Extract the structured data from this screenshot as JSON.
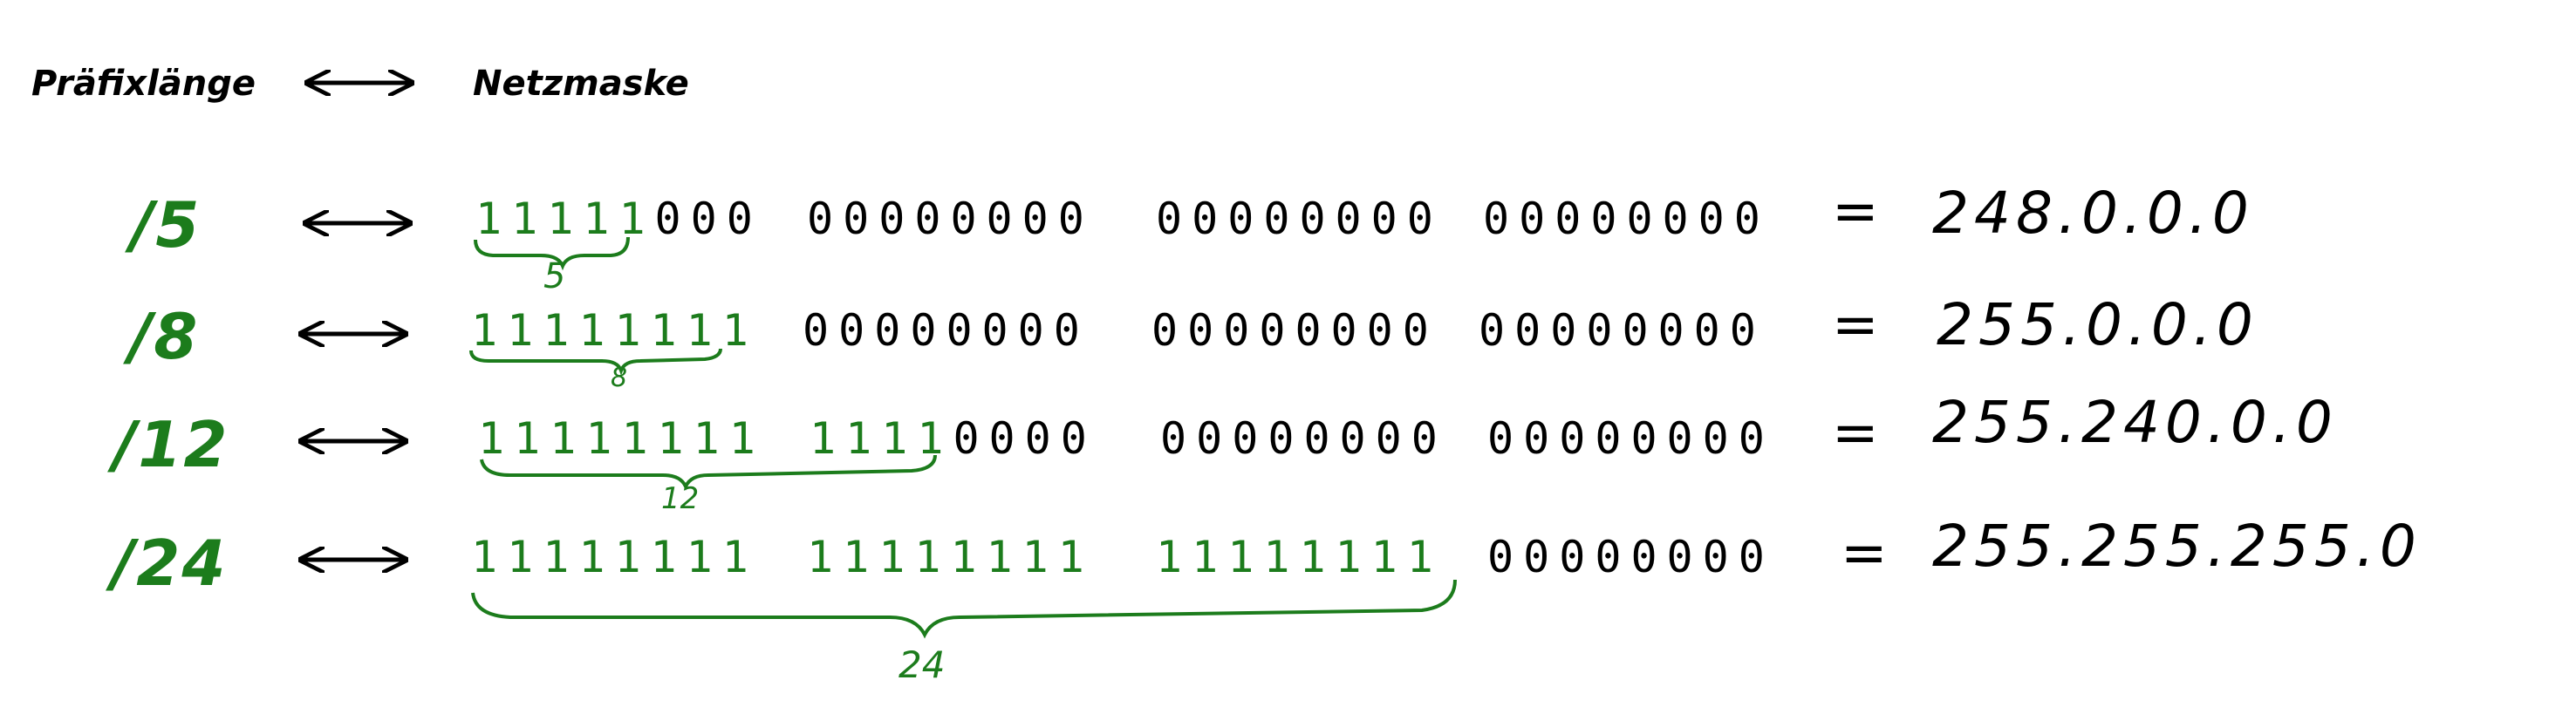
{
  "header": {
    "prefix_label": "Präfixlänge",
    "mask_label": "Netzmaske"
  },
  "colors": {
    "ones": "#1c7c1c",
    "ink": "#000000"
  },
  "equals_sign": "=",
  "rows": [
    {
      "prefix": "/5",
      "octets": [
        "11111000",
        "00000000",
        "00000000",
        "00000000"
      ],
      "brace_label": "5",
      "dotted": "248.0.0.0"
    },
    {
      "prefix": "/8",
      "octets": [
        "11111111",
        "00000000",
        "00000000",
        "00000000"
      ],
      "brace_label": "8",
      "dotted": "255.0.0.0"
    },
    {
      "prefix": "/12",
      "octets": [
        "11111111",
        "11110000",
        "00000000",
        "00000000"
      ],
      "brace_label": "12",
      "dotted": "255.240.0.0"
    },
    {
      "prefix": "/24",
      "octets": [
        "11111111",
        "11111111",
        "11111111",
        "00000000"
      ],
      "brace_label": "24",
      "dotted": "255.255.255.0"
    }
  ]
}
